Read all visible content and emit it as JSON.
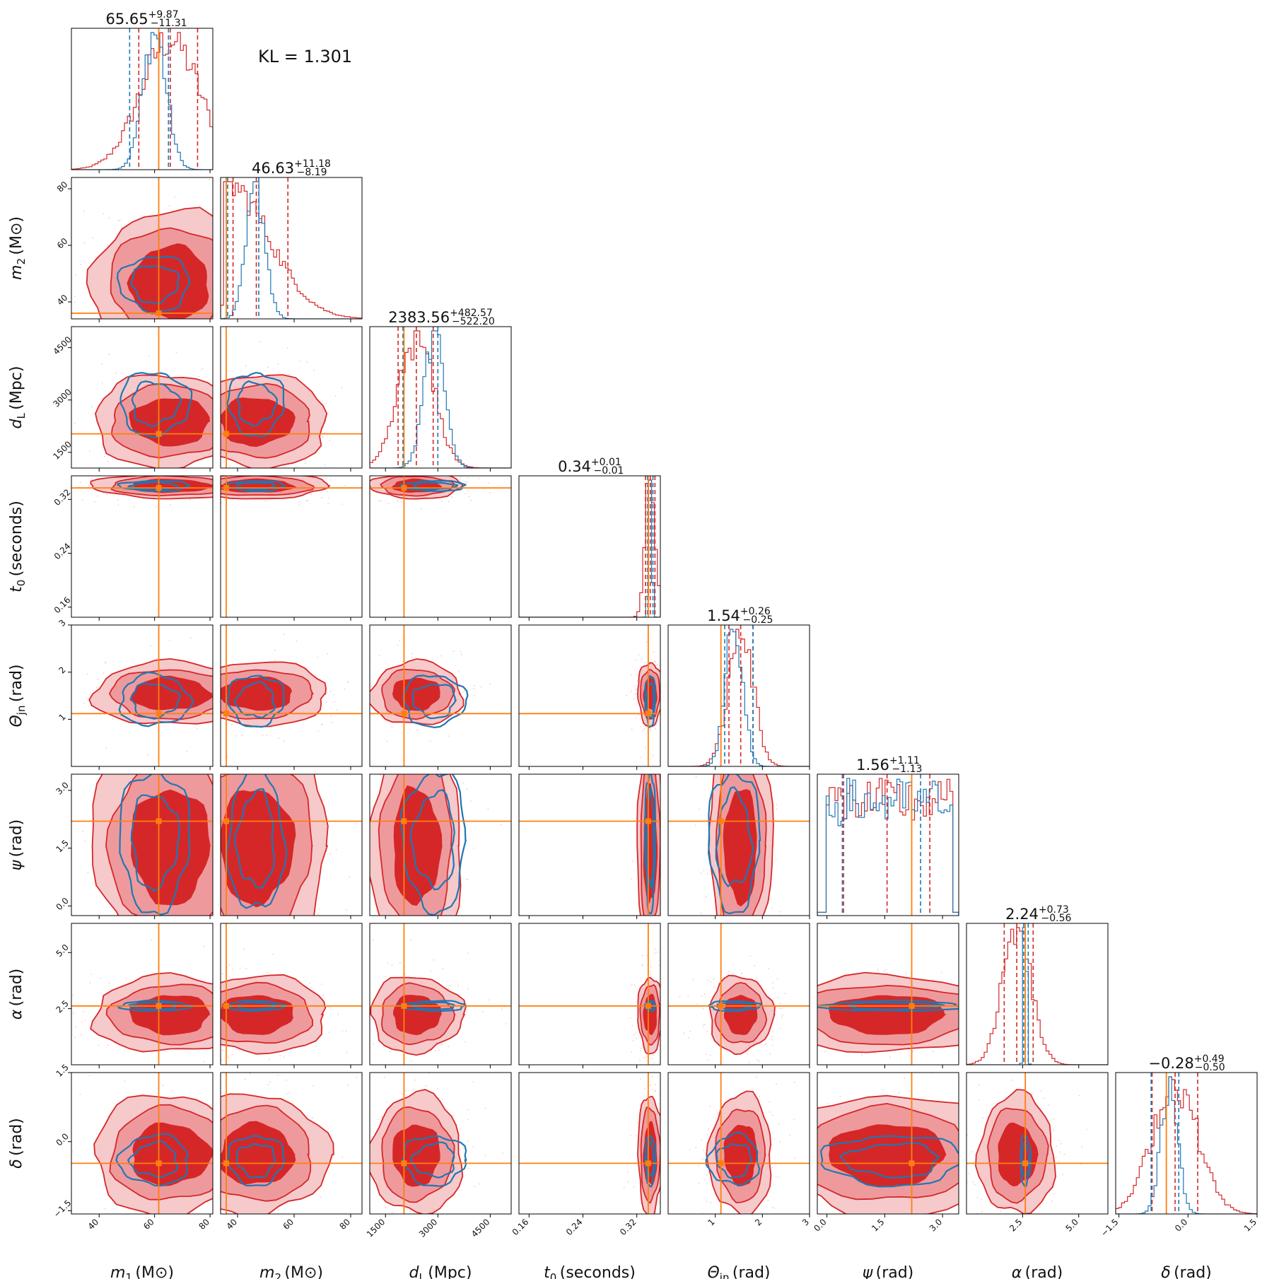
{
  "kl_text": "KL = 1.301",
  "colors": {
    "posterior_a": "#d62728",
    "posterior_b": "#1f77b4",
    "truth": "#ff7f0e"
  },
  "chart_data": {
    "type": "corner",
    "params": [
      {
        "key": "m1",
        "sym": "m",
        "sub": "1",
        "unit": "(M⊙)",
        "range": [
          30,
          81
        ],
        "ticks": [
          40,
          60,
          80
        ],
        "tick_labels": [
          "40",
          "60",
          "80"
        ],
        "truth": 61.5,
        "title_main": "65.65",
        "title_plus": "+9.87",
        "title_minus": "−11.31",
        "red_q": [
          54.3,
          65.65,
          75.5
        ],
        "blue_q": [
          51.0,
          60.0,
          65.0
        ],
        "peak": "mid"
      },
      {
        "key": "m2",
        "sym": "m",
        "sub": "2",
        "unit": "(M⊙)",
        "range": [
          34,
          84
        ],
        "ticks": [
          40,
          60,
          80
        ],
        "tick_labels": [
          "40",
          "60",
          "80"
        ],
        "truth": 36.0,
        "title_main": "46.63",
        "title_plus": "+11.18",
        "title_minus": "−8.19",
        "red_q": [
          38.4,
          46.63,
          57.8
        ],
        "blue_q": [
          36.5,
          46.5,
          47.5
        ],
        "peak": "low"
      },
      {
        "key": "dL",
        "sym": "d",
        "sub": "L",
        "unit": "(Mpc)",
        "range": [
          1050,
          5100
        ],
        "ticks": [
          1500,
          3000,
          4500
        ],
        "tick_labels": [
          "1500",
          "3000",
          "4500"
        ],
        "truth": 2030,
        "title_main": "2383.56",
        "title_plus": "+482.57",
        "title_minus": "−522.20",
        "red_q": [
          1861,
          2383.56,
          2866
        ],
        "blue_q": [
          2000,
          2900,
          3000
        ],
        "peak": "mid"
      },
      {
        "key": "t0",
        "sym": "t",
        "sub": "0",
        "unit": "(seconds)",
        "range": [
          0.145,
          0.355
        ],
        "ticks": [
          0.16,
          0.24,
          0.32
        ],
        "tick_labels": [
          "0.16",
          "0.24",
          "0.32"
        ],
        "truth": 0.337,
        "title_main": "0.34",
        "title_plus": "+0.01",
        "title_minus": "−0.01",
        "red_q": [
          0.333,
          0.34,
          0.347
        ],
        "blue_q": [
          0.336,
          0.34,
          0.344
        ],
        "peak": "high"
      },
      {
        "key": "thjn",
        "sym": "Θ",
        "sub": "jn",
        "unit": "(rad)",
        "range": [
          0.0,
          3.0
        ],
        "ticks": [
          1,
          2,
          3
        ],
        "tick_labels": [
          "1",
          "2",
          "3"
        ],
        "truth": 1.12,
        "title_main": "1.54",
        "title_plus": "+0.26",
        "title_minus": "−0.25",
        "red_q": [
          1.29,
          1.54,
          1.8
        ],
        "blue_q": [
          1.2,
          1.4,
          1.8
        ],
        "peak": "mid"
      },
      {
        "key": "psi",
        "sym": "ψ",
        "sub": "",
        "unit": "(rad)",
        "range": [
          -0.25,
          3.42
        ],
        "ticks": [
          0.0,
          1.5,
          3.0
        ],
        "tick_labels": [
          "0.0",
          "1.5",
          "3.0"
        ],
        "truth": 2.2,
        "title_main": "1.56",
        "title_plus": "+1.11",
        "title_minus": "−1.13",
        "red_q": [
          0.43,
          1.56,
          2.67
        ],
        "blue_q": [
          0.4,
          1.7,
          2.43
        ],
        "peak": "flat"
      },
      {
        "key": "alpha",
        "sym": "α",
        "sub": "",
        "unit": "(rad)",
        "range": [
          0.0,
          6.3
        ],
        "ticks": [
          2.5,
          5.0
        ],
        "tick_labels": [
          "2.5",
          "5.0"
        ],
        "truth": 2.62,
        "title_main": "2.24",
        "title_plus": "+0.73",
        "title_minus": "−0.56",
        "red_q": [
          1.68,
          2.24,
          2.97
        ],
        "blue_q": [
          2.55,
          2.62,
          2.75
        ],
        "peak": "mid"
      },
      {
        "key": "delta",
        "sym": "δ",
        "sub": "",
        "unit": "(rad)",
        "range": [
          -1.57,
          1.5
        ],
        "ticks": [
          -1.5,
          0.0,
          1.5
        ],
        "tick_labels": [
          "−1.5",
          "0.0",
          "1.5"
        ],
        "truth": -0.47,
        "title_main": "−0.28",
        "title_plus": "+0.49",
        "title_minus": "−0.50",
        "red_q": [
          -0.78,
          -0.28,
          0.21
        ],
        "blue_q": [
          -0.8,
          -0.4,
          -0.2
        ],
        "peak": "mid"
      }
    ],
    "left_tick_rows": {
      "m2": {
        "ticks": [
          40,
          60,
          80
        ],
        "labels": [
          "40",
          "60",
          "80"
        ]
      },
      "dL": {
        "ticks": [
          1500,
          3000,
          4500
        ],
        "labels": [
          "1500",
          "3000",
          "4500"
        ]
      },
      "t0": {
        "ticks": [
          0.16,
          0.24,
          0.32
        ],
        "labels": [
          "0.16",
          "0.24",
          "0.32"
        ]
      },
      "thjn": {
        "ticks": [
          1,
          2,
          3
        ],
        "labels": [
          "1",
          "2",
          "3"
        ]
      },
      "psi": {
        "ticks": [
          0.0,
          1.5,
          3.0
        ],
        "labels": [
          "0.0",
          "1.5",
          "3.0"
        ]
      },
      "alpha": {
        "ticks": [
          2.5,
          5.0
        ],
        "labels": [
          "2.5",
          "5.0"
        ]
      },
      "delta": {
        "ticks": [
          -1.5,
          0.0,
          1.5
        ],
        "labels": [
          "−1.5",
          "0.0",
          "1.5"
        ]
      }
    }
  }
}
